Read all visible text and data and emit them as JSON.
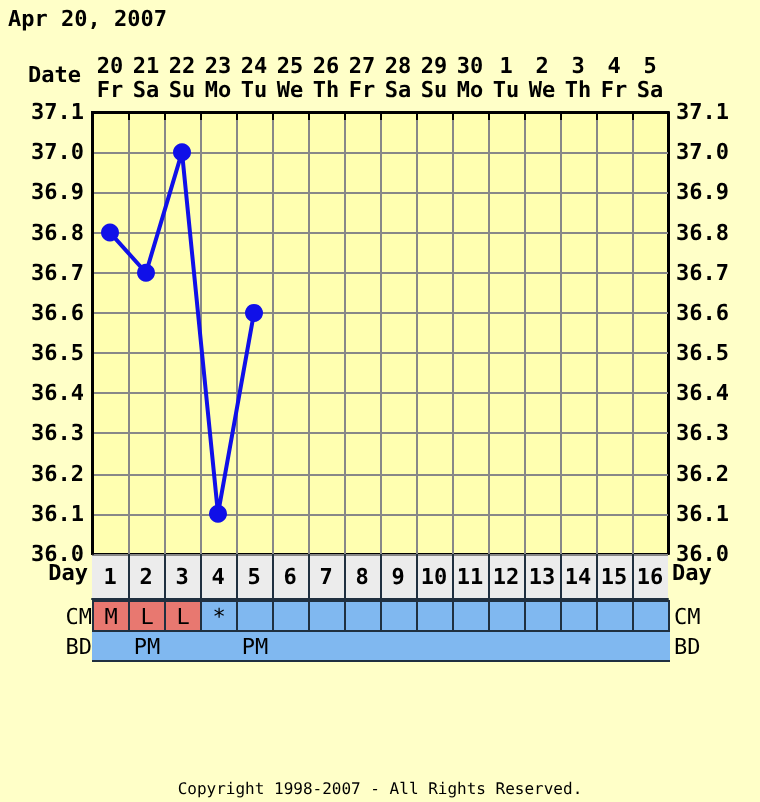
{
  "chart_data": [
    {
      "type": "line",
      "title": "Apr 20, 2007",
      "xlabel": "Date",
      "x2label": "Day",
      "categories": [
        "20\nFr",
        "21\nSa",
        "22\nSu",
        "23\nMo",
        "24\nTu",
        "25\nWe",
        "26\nTh",
        "27\nFr",
        "28\nSa",
        "29\nSu",
        "30\nMo",
        "1\nTu",
        "2\nWe",
        "3\nTh",
        "4\nFr",
        "5\nSa"
      ],
      "series": [
        {
          "color": "#1010e8",
          "values": [
            36.8,
            36.7,
            37.0,
            36.1,
            36.6,
            null,
            null,
            null,
            null,
            null,
            null,
            null,
            null,
            null,
            null,
            null
          ]
        }
      ],
      "ylim": [
        36.0,
        37.1
      ],
      "yticks": [
        {
          "value": 36.0,
          "label": "36.0"
        },
        36.1,
        36.2,
        36.3,
        36.4,
        36.5,
        36.6,
        36.7,
        36.8,
        36.9,
        {
          "value": 37.0,
          "label": "37.0"
        },
        37.1
      ],
      "y2lim": [
        36.0,
        37.1
      ],
      "y2ticks": [
        {
          "value": 36.0,
          "label": "36.0"
        },
        36.1,
        36.2,
        36.3,
        36.4,
        36.5,
        36.6,
        36.7,
        36.8,
        36.9,
        {
          "value": 37.0,
          "label": "37.0"
        },
        37.1
      ],
      "x2lim": [
        0.5,
        16.5
      ],
      "x2ticks": [
        1,
        2,
        3,
        4,
        5,
        6,
        7,
        8,
        9,
        10,
        11,
        12,
        13,
        14,
        15,
        16
      ],
      "grid": true,
      "marker": "circle",
      "line_style": "solid"
    },
    {
      "type": "other",
      "y_categories": [
        "CM",
        "BD"
      ],
      "y2_categories": [
        "CM",
        "BD"
      ],
      "cell_labels": [
        [
          "M",
          "L",
          "L",
          "*",
          null,
          null,
          null,
          null,
          null,
          null,
          null,
          null,
          null,
          null,
          null,
          null
        ],
        [
          null,
          "PM",
          null,
          null,
          "PM",
          null,
          null,
          null,
          null,
          null,
          null,
          null,
          null,
          null,
          null,
          null
        ]
      ],
      "colors": [
        [
          "#e87870",
          "#e87870",
          "#e87870",
          "#80b8f0",
          "#80b8f0",
          "#80b8f0",
          "#80b8f0",
          "#80b8f0",
          "#80b8f0",
          "#80b8f0",
          "#80b8f0",
          "#80b8f0",
          "#80b8f0",
          "#80b8f0",
          "#80b8f0",
          "#80b8f0"
        ],
        [
          "#80b8f0",
          "#80b8f0",
          "#80b8f0",
          "#80b8f0",
          "#80b8f0",
          "#80b8f0",
          "#80b8f0",
          "#80b8f0",
          "#80b8f0",
          "#80b8f0",
          "#80b8f0",
          "#80b8f0",
          "#80b8f0",
          "#80b8f0",
          "#80b8f0",
          "#80b8f0"
        ]
      ],
      "annotations": [
        "Copyright 1998-2007 - All Rights Reserved."
      ]
    }
  ]
}
